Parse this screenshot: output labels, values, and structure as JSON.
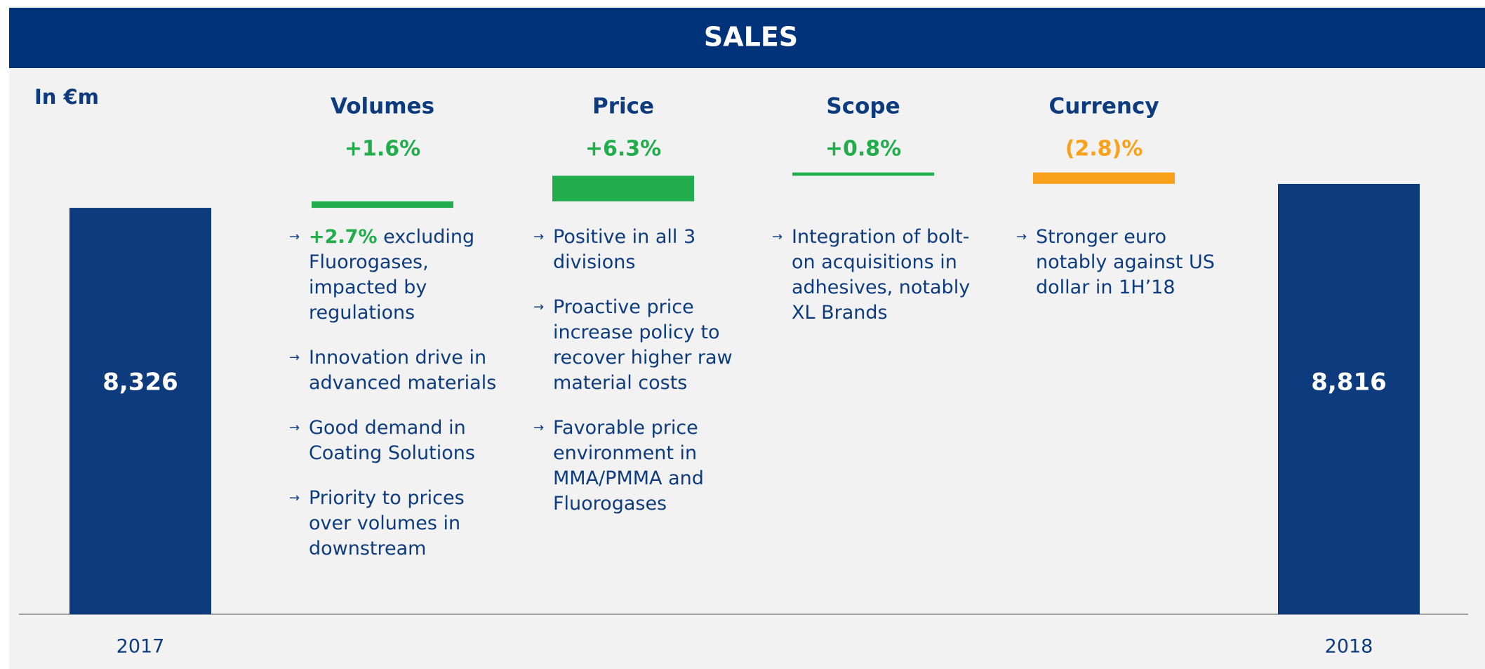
{
  "chart_data": {
    "type": "waterfall",
    "title": "SALES",
    "unit_label": "In €m",
    "totals": {
      "categories": [
        "2017",
        "2018"
      ],
      "values": [
        8326,
        8816
      ],
      "value_labels": [
        "8,326",
        "8,816"
      ],
      "color": "#0d3b7e"
    },
    "steps": {
      "categories": [
        "Volumes",
        "Price",
        "Scope",
        "Currency"
      ],
      "values": [
        1.6,
        6.3,
        0.8,
        -2.8
      ],
      "value_labels": [
        "+1.6%",
        "+6.3%",
        "+0.8%",
        "(2.8)%"
      ],
      "colors": [
        "#21ad4b",
        "#21ad4b",
        "#21ad4b",
        "#f9a11b"
      ],
      "notes": [
        [
          {
            "highlight": "+2.7%",
            "text": "excluding Fluorogases, impacted by regulations"
          },
          {
            "text": "Innovation drive in advanced materials"
          },
          {
            "text": "Good demand in Coating Solutions"
          },
          {
            "text": "Priority to prices over volumes in downstream"
          }
        ],
        [
          {
            "text": "Positive in all 3 divisions"
          },
          {
            "text": "Proactive price increase policy to recover higher raw material costs"
          },
          {
            "text": "Favorable price environment in MMA/PMMA and Fluorogases"
          }
        ],
        [
          {
            "text": "Integration of bolt-on acquisitions in adhesives, notably XL Brands"
          }
        ],
        [
          {
            "text": "Stronger euro notably against US dollar in 1H’18"
          }
        ]
      ]
    }
  }
}
